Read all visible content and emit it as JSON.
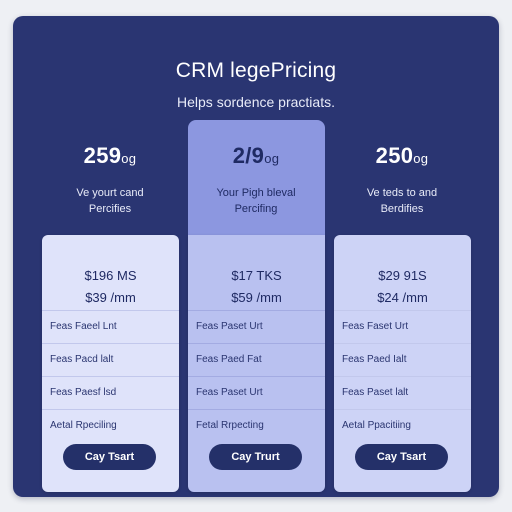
{
  "header": {
    "title": "CRM legePricing",
    "subtitle": "Helps sordence practiats."
  },
  "plans": [
    {
      "price": "259",
      "unit": "og",
      "desc_line1": "Ve yourt cand",
      "desc_line2": "Percifies",
      "line1": "$196 MS",
      "line2": "$39 /mm",
      "features": [
        "Feas Faeel Lnt",
        "Feas Pacd lalt",
        "Feas Paesf lsd",
        "Aetal Rpeciling"
      ],
      "button": "Cay Tsart"
    },
    {
      "price": "2/9",
      "unit": "og",
      "desc_line1": "Your Pigh bleval",
      "desc_line2": "Percifing",
      "line1": "$17 TKS",
      "line2": "$59 /mm",
      "features": [
        "Feas Paset Urt",
        "Feas Paed Fat",
        "Feas Paset Urt",
        "Fetal Rrpecting"
      ],
      "button": "Cay Trurt"
    },
    {
      "price": "250",
      "unit": "og",
      "desc_line1": "Ve teds to and",
      "desc_line2": "Berdifies",
      "line1": "$29 91S",
      "line2": "$24 /mm",
      "features": [
        "Feas Faset Urt",
        "Feas Paed Ialt",
        "Feas Paset lalt",
        "Aetal Ppacitiing"
      ],
      "button": "Cay Tsart"
    }
  ],
  "colors": {
    "panel": "#2a3572",
    "featured": "#8c97e0",
    "button": "#243069"
  }
}
